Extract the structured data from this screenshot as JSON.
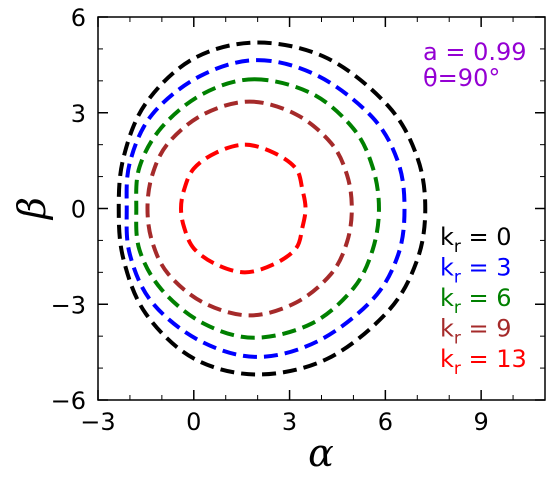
{
  "chart_data": {
    "type": "line",
    "title": "",
    "xlabel": "α",
    "ylabel": "β",
    "xlim": [
      -3,
      11
    ],
    "ylim": [
      -6,
      6
    ],
    "xticks": [
      -3,
      0,
      3,
      6,
      9
    ],
    "yticks": [
      -6,
      -3,
      0,
      3,
      6
    ],
    "xtick_labels": [
      "−3",
      "0",
      "3",
      "6",
      "9"
    ],
    "ytick_labels": [
      "−6",
      "−3",
      "0",
      "3",
      "6"
    ],
    "grid": false,
    "line_style": "dashed",
    "legend_position": "right",
    "annotation": {
      "a_text": "a = 0.99",
      "theta_text": "θ=90°",
      "color": "#9400D3"
    },
    "series": [
      {
        "name": "k_r = 0",
        "label_main": "k",
        "label_sub": "r",
        "label_rest": " = 0",
        "color": "#000000",
        "x": [
          2.0,
          4.2,
          6.1,
          7.0,
          7.25,
          7.0,
          6.1,
          4.2,
          2.0,
          0.0,
          -1.5,
          -2.2,
          -2.35,
          -2.2,
          -1.5,
          0.0,
          2.0
        ],
        "y": [
          5.2,
          4.7,
          3.2,
          1.6,
          0.0,
          -1.6,
          -3.2,
          -4.7,
          -5.2,
          -4.7,
          -3.3,
          -1.6,
          0.0,
          1.6,
          3.3,
          4.7,
          5.2
        ]
      },
      {
        "name": "k_r = 3",
        "label_main": "k",
        "label_sub": "r",
        "label_rest": " = 3",
        "color": "#0000FF",
        "x": [
          2.0,
          3.9,
          5.6,
          6.4,
          6.6,
          6.4,
          5.6,
          3.9,
          2.0,
          0.2,
          -1.3,
          -2.0,
          -2.1,
          -2.0,
          -1.3,
          0.2,
          2.0
        ],
        "y": [
          4.65,
          4.15,
          2.85,
          1.45,
          0.0,
          -1.45,
          -2.85,
          -4.15,
          -4.65,
          -4.15,
          -2.95,
          -1.45,
          0.0,
          1.45,
          2.95,
          4.15,
          4.65
        ]
      },
      {
        "name": "k_r = 6",
        "label_main": "k",
        "label_sub": "r",
        "label_rest": " = 6",
        "color": "#008000",
        "x": [
          1.9,
          3.7,
          5.0,
          5.6,
          5.8,
          5.6,
          5.0,
          3.7,
          1.9,
          0.3,
          -1.0,
          -1.7,
          -1.8,
          -1.7,
          -1.0,
          0.3,
          1.9
        ],
        "y": [
          4.05,
          3.6,
          2.5,
          1.3,
          0.0,
          -1.3,
          -2.5,
          -3.6,
          -4.05,
          -3.6,
          -2.55,
          -1.3,
          0.0,
          1.3,
          2.55,
          3.6,
          4.05
        ]
      },
      {
        "name": "k_r = 9",
        "label_main": "k",
        "label_sub": "r",
        "label_rest": " = 9",
        "color": "#A52A2A",
        "x": [
          1.75,
          3.2,
          4.3,
          4.8,
          4.95,
          4.8,
          4.3,
          3.2,
          1.75,
          0.3,
          -0.8,
          -1.3,
          -1.45,
          -1.3,
          -0.8,
          0.3,
          1.75
        ],
        "y": [
          3.35,
          2.95,
          2.05,
          1.05,
          0.0,
          -1.05,
          -2.05,
          -2.95,
          -3.35,
          -2.95,
          -2.05,
          -1.05,
          0.0,
          1.05,
          2.05,
          2.95,
          3.35
        ]
      },
      {
        "name": "k_r = 13",
        "label_main": "k",
        "label_sub": "r",
        "label_rest": " = 13",
        "color": "#FF0000",
        "x": [
          1.6,
          2.5,
          3.2,
          3.4,
          3.5,
          3.4,
          3.2,
          2.5,
          1.6,
          0.7,
          0.0,
          -0.3,
          -0.4,
          -0.3,
          0.0,
          0.7,
          1.6
        ],
        "y": [
          2.0,
          1.75,
          1.25,
          0.6,
          0.0,
          -0.6,
          -1.25,
          -1.75,
          -2.0,
          -1.75,
          -1.25,
          -0.6,
          0.0,
          0.6,
          1.25,
          1.75,
          2.0
        ]
      }
    ]
  }
}
